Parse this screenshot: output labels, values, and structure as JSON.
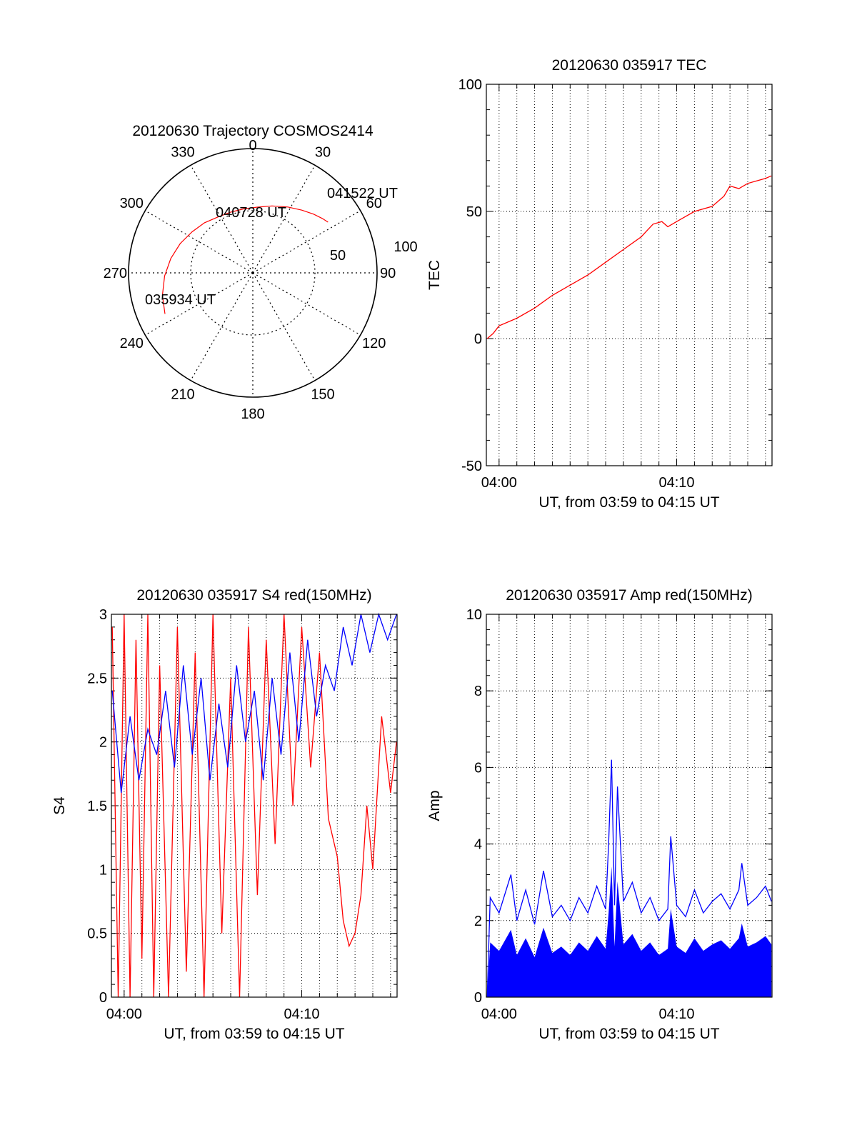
{
  "chart_data": [
    {
      "type": "polar",
      "title": "20120630 Trajectory COSMOS2414",
      "azimuth_labels": [
        "0",
        "30",
        "60",
        "90",
        "120",
        "150",
        "180",
        "210",
        "240",
        "270",
        "300",
        "330"
      ],
      "radial_labels": [
        "50",
        "100"
      ],
      "radial_range": [
        0,
        100
      ],
      "grid": true,
      "series": [
        {
          "color": "#ff0000",
          "points": [
            {
              "az": 245,
              "el": 12
            },
            {
              "az": 256,
              "el": 15
            },
            {
              "az": 268,
              "el": 19
            },
            {
              "az": 280,
              "el": 23
            },
            {
              "az": 292,
              "el": 27
            },
            {
              "az": 304,
              "el": 31
            },
            {
              "az": 316,
              "el": 34
            },
            {
              "az": 328,
              "el": 37
            },
            {
              "az": 340,
              "el": 38
            },
            {
              "az": 352,
              "el": 38
            },
            {
              "az": 4,
              "el": 37
            },
            {
              "az": 16,
              "el": 34
            },
            {
              "az": 28,
              "el": 30
            },
            {
              "az": 38,
              "el": 26
            },
            {
              "az": 46,
              "el": 22
            },
            {
              "az": 52,
              "el": 19
            },
            {
              "az": 56,
              "el": 17
            }
          ]
        }
      ],
      "annotations": [
        {
          "text": "041522 UT",
          "az": 56,
          "el": 17
        },
        {
          "text": "040728 UT",
          "az": 348,
          "el": 52
        },
        {
          "text": "035934 UT",
          "az": 246,
          "el": 32
        }
      ]
    },
    {
      "type": "line",
      "title": "20120630 035917 TEC",
      "xlabel": "UT, from 03:59 to 04:15 UT",
      "ylabel": "TEC",
      "xlim": [
        "03:59:17",
        "04:15:22"
      ],
      "ylim": [
        -50,
        100
      ],
      "x_ticks": [
        "04:00",
        "04:10"
      ],
      "y_ticks": [
        "-50",
        "0",
        "50",
        "100"
      ],
      "grid": true,
      "series": [
        {
          "color": "#ff0000",
          "points": [
            [
              "03:59:20",
              0
            ],
            [
              "03:59:40",
              2
            ],
            [
              "04:00:00",
              5
            ],
            [
              "04:01:00",
              8
            ],
            [
              "04:02:00",
              12
            ],
            [
              "04:03:00",
              17
            ],
            [
              "04:04:00",
              21
            ],
            [
              "04:05:00",
              25
            ],
            [
              "04:06:00",
              30
            ],
            [
              "04:07:00",
              35
            ],
            [
              "04:08:00",
              40
            ],
            [
              "04:08:40",
              45
            ],
            [
              "04:09:10",
              46
            ],
            [
              "04:09:30",
              44
            ],
            [
              "04:10:00",
              46
            ],
            [
              "04:10:30",
              48
            ],
            [
              "04:11:00",
              50
            ],
            [
              "04:12:00",
              52
            ],
            [
              "04:12:40",
              56
            ],
            [
              "04:13:00",
              60
            ],
            [
              "04:13:30",
              59
            ],
            [
              "04:14:00",
              61
            ],
            [
              "04:15:00",
              63
            ],
            [
              "04:15:20",
              64
            ]
          ]
        }
      ]
    },
    {
      "type": "line",
      "title": "20120630 035917 S4 red(150MHz)",
      "xlabel": "UT, from 03:59 to 04:15 UT",
      "ylabel": "S4",
      "xlim": [
        "03:59:17",
        "04:15:22"
      ],
      "ylim": [
        0,
        3
      ],
      "x_ticks": [
        "04:00",
        "04:10"
      ],
      "y_ticks": [
        "0",
        "0.5",
        "1",
        "1.5",
        "2",
        "2.5",
        "3"
      ],
      "grid": true,
      "series": [
        {
          "color": "#ff0000",
          "points": [
            [
              "03:59:20",
              2.9
            ],
            [
              "03:59:40",
              0
            ],
            [
              "04:00:00",
              3.0
            ],
            [
              "04:00:20",
              0
            ],
            [
              "04:00:40",
              2.8
            ],
            [
              "04:01:00",
              0.3
            ],
            [
              "04:01:20",
              3.0
            ],
            [
              "04:01:40",
              0
            ],
            [
              "04:02:00",
              2.6
            ],
            [
              "04:02:30",
              0
            ],
            [
              "04:03:00",
              2.9
            ],
            [
              "04:03:30",
              0.2
            ],
            [
              "04:04:00",
              2.7
            ],
            [
              "04:04:30",
              0
            ],
            [
              "04:05:00",
              3.0
            ],
            [
              "04:05:30",
              0.5
            ],
            [
              "04:06:00",
              2.5
            ],
            [
              "04:06:30",
              0
            ],
            [
              "04:07:00",
              2.9
            ],
            [
              "04:07:30",
              0.8
            ],
            [
              "04:08:00",
              2.8
            ],
            [
              "04:08:30",
              1.2
            ],
            [
              "04:09:00",
              3.0
            ],
            [
              "04:09:30",
              1.5
            ],
            [
              "04:10:00",
              2.9
            ],
            [
              "04:10:30",
              1.8
            ],
            [
              "04:11:00",
              2.7
            ],
            [
              "04:11:30",
              1.4
            ],
            [
              "04:12:00",
              1.1
            ],
            [
              "04:12:20",
              0.6
            ],
            [
              "04:12:40",
              0.4
            ],
            [
              "04:13:00",
              0.5
            ],
            [
              "04:13:20",
              0.8
            ],
            [
              "04:13:40",
              1.5
            ],
            [
              "04:14:00",
              1.0
            ],
            [
              "04:14:30",
              2.2
            ],
            [
              "04:15:00",
              1.6
            ],
            [
              "04:15:20",
              2.0
            ]
          ]
        },
        {
          "color": "#0000ff",
          "points": [
            [
              "03:59:20",
              2.4
            ],
            [
              "03:59:50",
              1.6
            ],
            [
              "04:00:20",
              2.2
            ],
            [
              "04:00:50",
              1.7
            ],
            [
              "04:01:20",
              2.1
            ],
            [
              "04:01:50",
              1.9
            ],
            [
              "04:02:20",
              2.4
            ],
            [
              "04:02:50",
              1.8
            ],
            [
              "04:03:20",
              2.6
            ],
            [
              "04:03:50",
              1.9
            ],
            [
              "04:04:20",
              2.5
            ],
            [
              "04:04:50",
              1.7
            ],
            [
              "04:05:20",
              2.3
            ],
            [
              "04:05:50",
              1.8
            ],
            [
              "04:06:20",
              2.6
            ],
            [
              "04:06:50",
              2.0
            ],
            [
              "04:07:20",
              2.4
            ],
            [
              "04:07:50",
              1.7
            ],
            [
              "04:08:20",
              2.5
            ],
            [
              "04:08:50",
              1.9
            ],
            [
              "04:09:20",
              2.7
            ],
            [
              "04:09:50",
              2.0
            ],
            [
              "04:10:20",
              2.8
            ],
            [
              "04:10:50",
              2.2
            ],
            [
              "04:11:20",
              2.6
            ],
            [
              "04:11:50",
              2.4
            ],
            [
              "04:12:20",
              2.9
            ],
            [
              "04:12:50",
              2.6
            ],
            [
              "04:13:20",
              3.0
            ],
            [
              "04:13:50",
              2.7
            ],
            [
              "04:14:20",
              3.0
            ],
            [
              "04:14:50",
              2.8
            ],
            [
              "04:15:20",
              3.0
            ]
          ]
        }
      ]
    },
    {
      "type": "line",
      "title": "20120630 035917 Amp red(150MHz)",
      "xlabel": "UT, from 03:59 to 04:15 UT",
      "ylabel": "Amp",
      "xlim": [
        "03:59:17",
        "04:15:22"
      ],
      "ylim": [
        0,
        10
      ],
      "x_ticks": [
        "04:00",
        "04:10"
      ],
      "y_ticks": [
        "0",
        "2",
        "4",
        "6",
        "8",
        "10"
      ],
      "grid": true,
      "series": [
        {
          "color": "#0000ff",
          "points": [
            [
              "03:59:20",
              0
            ],
            [
              "03:59:30",
              2.6
            ],
            [
              "04:00:00",
              2.2
            ],
            [
              "04:00:40",
              3.2
            ],
            [
              "04:01:00",
              2.0
            ],
            [
              "04:01:30",
              2.8
            ],
            [
              "04:02:00",
              1.9
            ],
            [
              "04:02:30",
              3.3
            ],
            [
              "04:03:00",
              2.1
            ],
            [
              "04:03:30",
              2.4
            ],
            [
              "04:04:00",
              2.0
            ],
            [
              "04:04:30",
              2.6
            ],
            [
              "04:05:00",
              2.2
            ],
            [
              "04:05:30",
              2.9
            ],
            [
              "04:06:00",
              2.3
            ],
            [
              "04:06:10",
              4.0
            ],
            [
              "04:06:20",
              6.2
            ],
            [
              "04:06:30",
              2.4
            ],
            [
              "04:06:40",
              5.5
            ],
            [
              "04:07:00",
              2.5
            ],
            [
              "04:07:30",
              3.0
            ],
            [
              "04:08:00",
              2.2
            ],
            [
              "04:08:30",
              2.6
            ],
            [
              "04:09:00",
              2.0
            ],
            [
              "04:09:30",
              2.3
            ],
            [
              "04:09:40",
              4.2
            ],
            [
              "04:10:00",
              2.4
            ],
            [
              "04:10:30",
              2.1
            ],
            [
              "04:11:00",
              2.8
            ],
            [
              "04:11:30",
              2.2
            ],
            [
              "04:12:00",
              2.5
            ],
            [
              "04:12:30",
              2.7
            ],
            [
              "04:13:00",
              2.3
            ],
            [
              "04:13:30",
              2.8
            ],
            [
              "04:13:40",
              3.5
            ],
            [
              "04:14:00",
              2.4
            ],
            [
              "04:14:30",
              2.6
            ],
            [
              "04:15:00",
              2.9
            ],
            [
              "04:15:20",
              2.5
            ]
          ]
        }
      ]
    }
  ]
}
